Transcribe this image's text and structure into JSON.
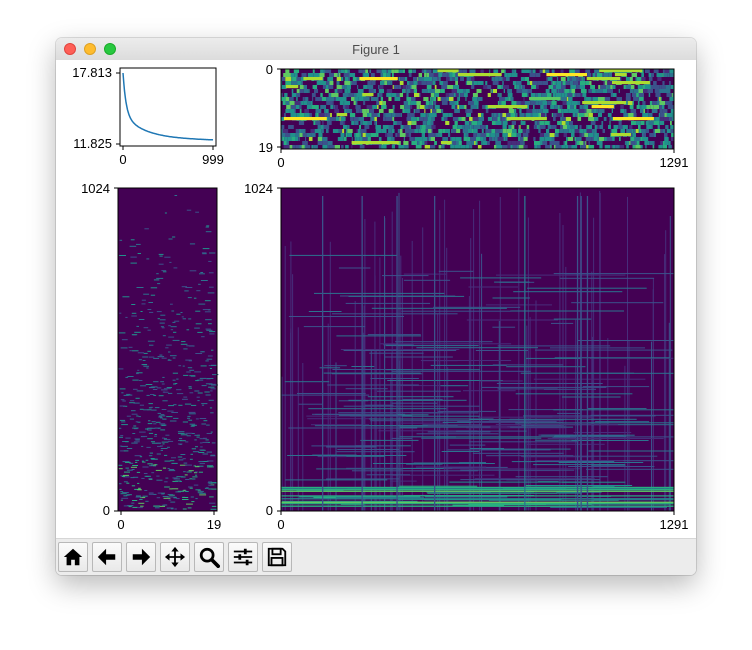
{
  "window": {
    "title": "Figure 1"
  },
  "toolbar": {
    "buttons": [
      {
        "name": "home-button",
        "icon": "home-icon",
        "tooltip": "Reset original view"
      },
      {
        "name": "back-button",
        "icon": "arrow-left-icon",
        "tooltip": "Back to previous view"
      },
      {
        "name": "forward-button",
        "icon": "arrow-right-icon",
        "tooltip": "Forward to next view"
      },
      {
        "name": "pan-button",
        "icon": "move-icon",
        "tooltip": "Pan axes"
      },
      {
        "name": "zoom-button",
        "icon": "magnifier-icon",
        "tooltip": "Zoom to rectangle"
      },
      {
        "name": "configure-subplots-button",
        "icon": "sliders-icon",
        "tooltip": "Configure subplots"
      },
      {
        "name": "save-button",
        "icon": "floppy-disk-icon",
        "tooltip": "Save the figure"
      }
    ]
  },
  "chart_data": [
    {
      "type": "line",
      "x_ticks": [
        "0",
        "999"
      ],
      "y_ticks": [
        "17.813",
        "11.825"
      ],
      "xlim": [
        0,
        999
      ],
      "ylim": [
        11.825,
        17.813
      ],
      "series_color": "#1f77b4",
      "shape": "rapid decay then slow plateau"
    },
    {
      "type": "heatmap",
      "x_ticks": [
        "0",
        "1291"
      ],
      "y_ticks": [
        "0",
        "19"
      ],
      "xlim": [
        0,
        1291
      ],
      "ylim": [
        0,
        19
      ],
      "colormap": "viridis"
    },
    {
      "type": "heatmap",
      "x_ticks": [
        "0",
        "19"
      ],
      "y_ticks": [
        "1024",
        "0"
      ],
      "xlim": [
        0,
        19
      ],
      "ylim": [
        0,
        1024
      ],
      "colormap": "viridis"
    },
    {
      "type": "heatmap",
      "x_ticks": [
        "0",
        "1291"
      ],
      "y_ticks": [
        "1024",
        "0"
      ],
      "xlim": [
        0,
        1291
      ],
      "ylim": [
        0,
        1024
      ],
      "colormap": "viridis"
    }
  ]
}
